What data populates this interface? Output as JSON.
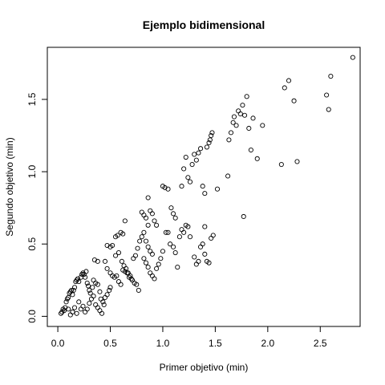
{
  "chart_data": {
    "type": "scatter",
    "title": "Ejemplo bidimensional",
    "xlabel": "Primer objetivo (min)",
    "ylabel": "Segundo objetivo (min)",
    "xlim": [
      -0.1,
      2.88
    ],
    "ylim": [
      -0.07,
      1.86
    ],
    "xticks": [
      0.0,
      0.5,
      1.0,
      1.5,
      2.0,
      2.5
    ],
    "xtick_labels": [
      "0.0",
      "0.5",
      "1.0",
      "1.5",
      "2.0",
      "2.5"
    ],
    "yticks": [
      0.0,
      0.5,
      1.0,
      1.5
    ],
    "ytick_labels": [
      "0.0",
      "0.5",
      "1.0",
      "1.5"
    ],
    "grid": false,
    "legend": "none",
    "points": [
      [
        0.03,
        0.02
      ],
      [
        0.04,
        0.03
      ],
      [
        0.05,
        0.05
      ],
      [
        0.06,
        0.04
      ],
      [
        0.07,
        0.06
      ],
      [
        0.08,
        0.1
      ],
      [
        0.09,
        0.12
      ],
      [
        0.1,
        0.13
      ],
      [
        0.11,
        0.16
      ],
      [
        0.12,
        0.17
      ],
      [
        0.13,
        0.18
      ],
      [
        0.14,
        0.15
      ],
      [
        0.15,
        0.18
      ],
      [
        0.16,
        0.2
      ],
      [
        0.17,
        0.24
      ],
      [
        0.18,
        0.25
      ],
      [
        0.19,
        0.26
      ],
      [
        0.2,
        0.24
      ],
      [
        0.22,
        0.27
      ],
      [
        0.23,
        0.29
      ],
      [
        0.24,
        0.3
      ],
      [
        0.25,
        0.29
      ],
      [
        0.26,
        0.27
      ],
      [
        0.27,
        0.31
      ],
      [
        0.28,
        0.23
      ],
      [
        0.29,
        0.21
      ],
      [
        0.3,
        0.18
      ],
      [
        0.31,
        0.16
      ],
      [
        0.33,
        0.2
      ],
      [
        0.34,
        0.25
      ],
      [
        0.36,
        0.23
      ],
      [
        0.38,
        0.22
      ],
      [
        0.4,
        0.17
      ],
      [
        0.41,
        0.12
      ],
      [
        0.43,
        0.1
      ],
      [
        0.45,
        0.13
      ],
      [
        0.47,
        0.15
      ],
      [
        0.49,
        0.18
      ],
      [
        0.5,
        0.2
      ],
      [
        0.2,
        0.1
      ],
      [
        0.22,
        0.05
      ],
      [
        0.24,
        0.07
      ],
      [
        0.26,
        0.03
      ],
      [
        0.28,
        0.05
      ],
      [
        0.3,
        0.09
      ],
      [
        0.32,
        0.12
      ],
      [
        0.34,
        0.14
      ],
      [
        0.36,
        0.08
      ],
      [
        0.38,
        0.06
      ],
      [
        0.4,
        0.04
      ],
      [
        0.42,
        0.02
      ],
      [
        0.44,
        0.08
      ],
      [
        0.1,
        0.05
      ],
      [
        0.12,
        0.01
      ],
      [
        0.14,
        0.03
      ],
      [
        0.16,
        0.06
      ],
      [
        0.18,
        0.02
      ],
      [
        0.35,
        0.39
      ],
      [
        0.38,
        0.38
      ],
      [
        0.45,
        0.38
      ],
      [
        0.47,
        0.33
      ],
      [
        0.5,
        0.3
      ],
      [
        0.52,
        0.28
      ],
      [
        0.54,
        0.27
      ],
      [
        0.56,
        0.28
      ],
      [
        0.58,
        0.24
      ],
      [
        0.6,
        0.22
      ],
      [
        0.47,
        0.49
      ],
      [
        0.5,
        0.48
      ],
      [
        0.52,
        0.49
      ],
      [
        0.55,
        0.55
      ],
      [
        0.57,
        0.56
      ],
      [
        0.6,
        0.58
      ],
      [
        0.62,
        0.57
      ],
      [
        0.64,
        0.66
      ],
      [
        0.55,
        0.42
      ],
      [
        0.58,
        0.44
      ],
      [
        0.61,
        0.38
      ],
      [
        0.63,
        0.35
      ],
      [
        0.65,
        0.33
      ],
      [
        0.67,
        0.3
      ],
      [
        0.69,
        0.28
      ],
      [
        0.71,
        0.25
      ],
      [
        0.73,
        0.23
      ],
      [
        0.75,
        0.22
      ],
      [
        0.77,
        0.18
      ],
      [
        0.62,
        0.32
      ],
      [
        0.64,
        0.31
      ],
      [
        0.66,
        0.3
      ],
      [
        0.68,
        0.27
      ],
      [
        0.7,
        0.26
      ],
      [
        0.72,
        0.4
      ],
      [
        0.74,
        0.42
      ],
      [
        0.76,
        0.47
      ],
      [
        0.78,
        0.52
      ],
      [
        0.8,
        0.55
      ],
      [
        0.82,
        0.58
      ],
      [
        0.84,
        0.52
      ],
      [
        0.86,
        0.48
      ],
      [
        0.88,
        0.45
      ],
      [
        0.9,
        0.43
      ],
      [
        0.8,
        0.72
      ],
      [
        0.82,
        0.7
      ],
      [
        0.84,
        0.68
      ],
      [
        0.86,
        0.63
      ],
      [
        0.88,
        0.73
      ],
      [
        0.9,
        0.71
      ],
      [
        0.92,
        0.66
      ],
      [
        0.94,
        0.63
      ],
      [
        0.86,
        0.82
      ],
      [
        0.82,
        0.4
      ],
      [
        0.84,
        0.37
      ],
      [
        0.86,
        0.34
      ],
      [
        0.88,
        0.3
      ],
      [
        0.9,
        0.28
      ],
      [
        0.92,
        0.26
      ],
      [
        0.94,
        0.33
      ],
      [
        0.96,
        0.36
      ],
      [
        0.98,
        0.4
      ],
      [
        1.0,
        0.45
      ],
      [
        1.0,
        0.9
      ],
      [
        1.02,
        0.89
      ],
      [
        1.05,
        0.88
      ],
      [
        1.08,
        0.75
      ],
      [
        1.1,
        0.71
      ],
      [
        1.12,
        0.68
      ],
      [
        1.03,
        0.58
      ],
      [
        1.05,
        0.58
      ],
      [
        1.07,
        0.5
      ],
      [
        1.1,
        0.48
      ],
      [
        1.12,
        0.44
      ],
      [
        1.14,
        0.34
      ],
      [
        1.16,
        0.55
      ],
      [
        1.18,
        0.6
      ],
      [
        1.2,
        0.58
      ],
      [
        1.22,
        0.63
      ],
      [
        1.24,
        0.62
      ],
      [
        1.26,
        0.55
      ],
      [
        1.18,
        0.9
      ],
      [
        1.2,
        1.02
      ],
      [
        1.22,
        1.1
      ],
      [
        1.24,
        0.96
      ],
      [
        1.26,
        0.93
      ],
      [
        1.28,
        1.05
      ],
      [
        1.3,
        1.12
      ],
      [
        1.32,
        1.08
      ],
      [
        1.34,
        1.13
      ],
      [
        1.36,
        1.16
      ],
      [
        1.38,
        0.9
      ],
      [
        1.4,
        0.85
      ],
      [
        1.42,
        1.17
      ],
      [
        1.44,
        1.2
      ],
      [
        1.45,
        1.22
      ],
      [
        1.46,
        1.25
      ],
      [
        1.47,
        1.27
      ],
      [
        1.3,
        0.41
      ],
      [
        1.32,
        0.36
      ],
      [
        1.34,
        0.38
      ],
      [
        1.36,
        0.48
      ],
      [
        1.38,
        0.5
      ],
      [
        1.4,
        0.43
      ],
      [
        1.42,
        0.38
      ],
      [
        1.44,
        0.37
      ],
      [
        1.46,
        0.54
      ],
      [
        1.48,
        0.56
      ],
      [
        1.4,
        0.62
      ],
      [
        1.52,
        0.88
      ],
      [
        1.62,
        0.97
      ],
      [
        1.63,
        1.22
      ],
      [
        1.65,
        1.27
      ],
      [
        1.67,
        1.34
      ],
      [
        1.68,
        1.38
      ],
      [
        1.7,
        1.32
      ],
      [
        1.72,
        1.42
      ],
      [
        1.74,
        1.4
      ],
      [
        1.76,
        1.46
      ],
      [
        1.78,
        1.39
      ],
      [
        1.8,
        1.52
      ],
      [
        1.82,
        1.3
      ],
      [
        1.84,
        1.15
      ],
      [
        1.86,
        1.37
      ],
      [
        1.9,
        1.09
      ],
      [
        1.95,
        1.32
      ],
      [
        1.77,
        0.69
      ],
      [
        2.13,
        1.05
      ],
      [
        2.16,
        1.58
      ],
      [
        2.2,
        1.63
      ],
      [
        2.25,
        1.49
      ],
      [
        2.28,
        1.07
      ],
      [
        2.56,
        1.53
      ],
      [
        2.58,
        1.43
      ],
      [
        2.6,
        1.66
      ],
      [
        2.81,
        1.79
      ]
    ]
  }
}
